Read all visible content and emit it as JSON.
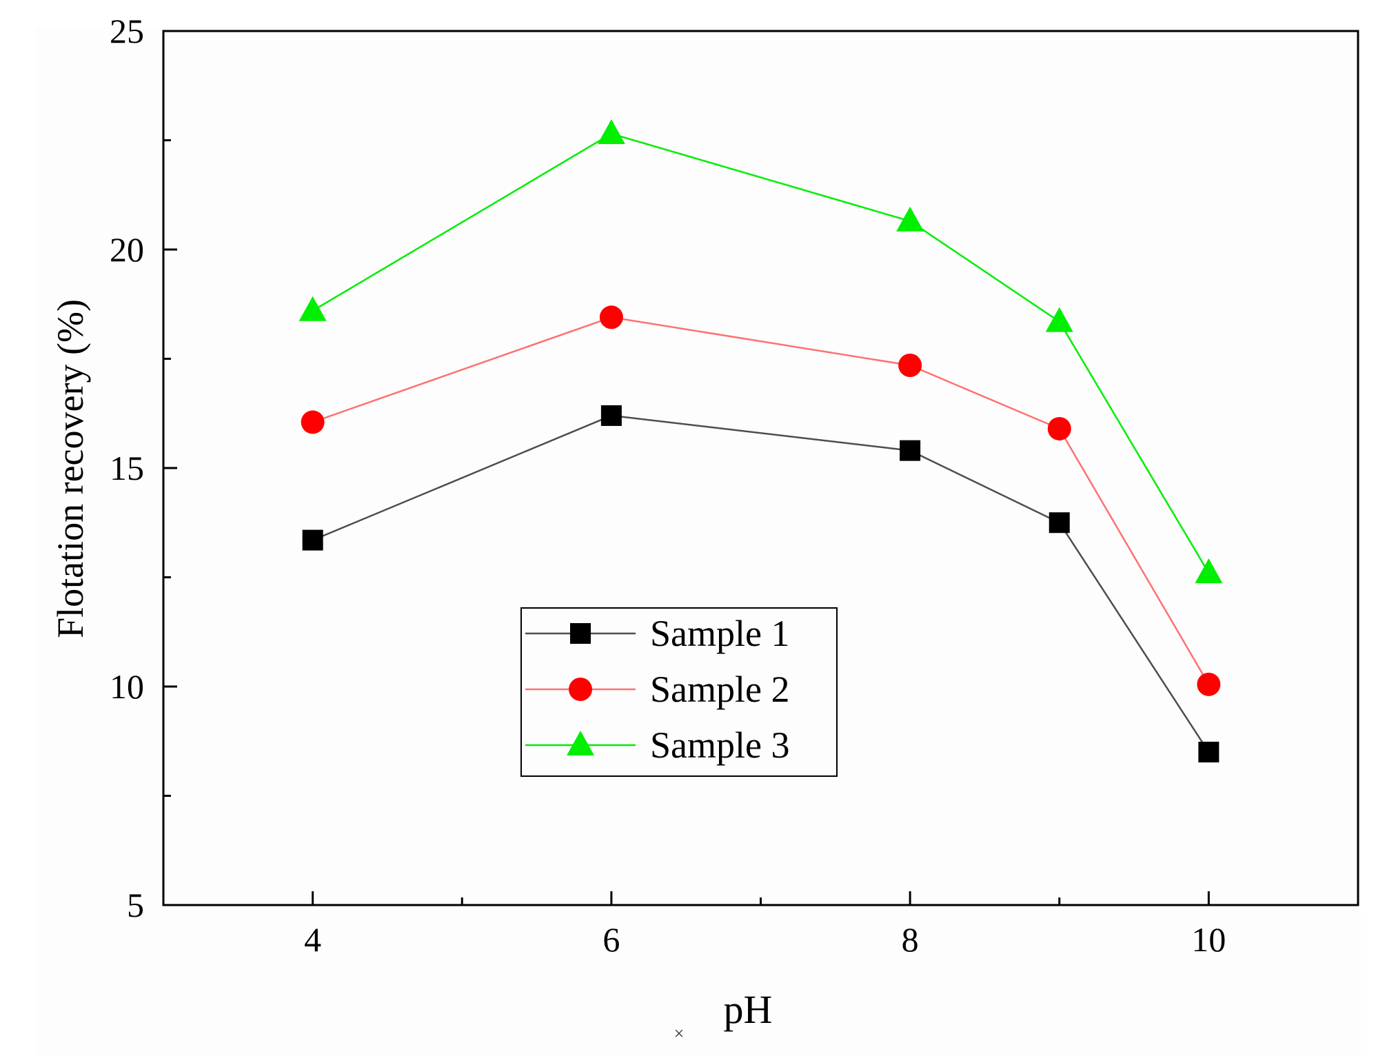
{
  "chart_data": {
    "type": "line",
    "title": "",
    "xlabel": "pH",
    "ylabel": "Flotation recovery (%)",
    "x": [
      4,
      6,
      8,
      9,
      10
    ],
    "xlim": [
      3,
      11
    ],
    "ylim": [
      5,
      25
    ],
    "x_ticks": [
      4,
      6,
      8,
      10
    ],
    "x_minor_ticks": [
      5,
      7,
      9
    ],
    "y_ticks": [
      5,
      10,
      15,
      20,
      25
    ],
    "y_minor_ticks": [
      7.5,
      12.5,
      17.5,
      22.5
    ],
    "grid": false,
    "legend_position": "lower-center",
    "series": [
      {
        "name": "Sample 1",
        "values": [
          13.35,
          16.2,
          15.4,
          13.75,
          8.5
        ],
        "color": "#000000",
        "line_color": "#4d4d4d",
        "marker": "square"
      },
      {
        "name": "Sample 2",
        "values": [
          16.05,
          18.45,
          17.35,
          15.9,
          10.05
        ],
        "color": "#ff0000",
        "line_color": "#ff7070",
        "marker": "circle"
      },
      {
        "name": "Sample 3",
        "values": [
          18.6,
          22.65,
          20.65,
          18.35,
          12.6
        ],
        "color": "#00ee00",
        "line_color": "#00ee00",
        "marker": "triangle"
      }
    ],
    "stray_mark": "×"
  }
}
